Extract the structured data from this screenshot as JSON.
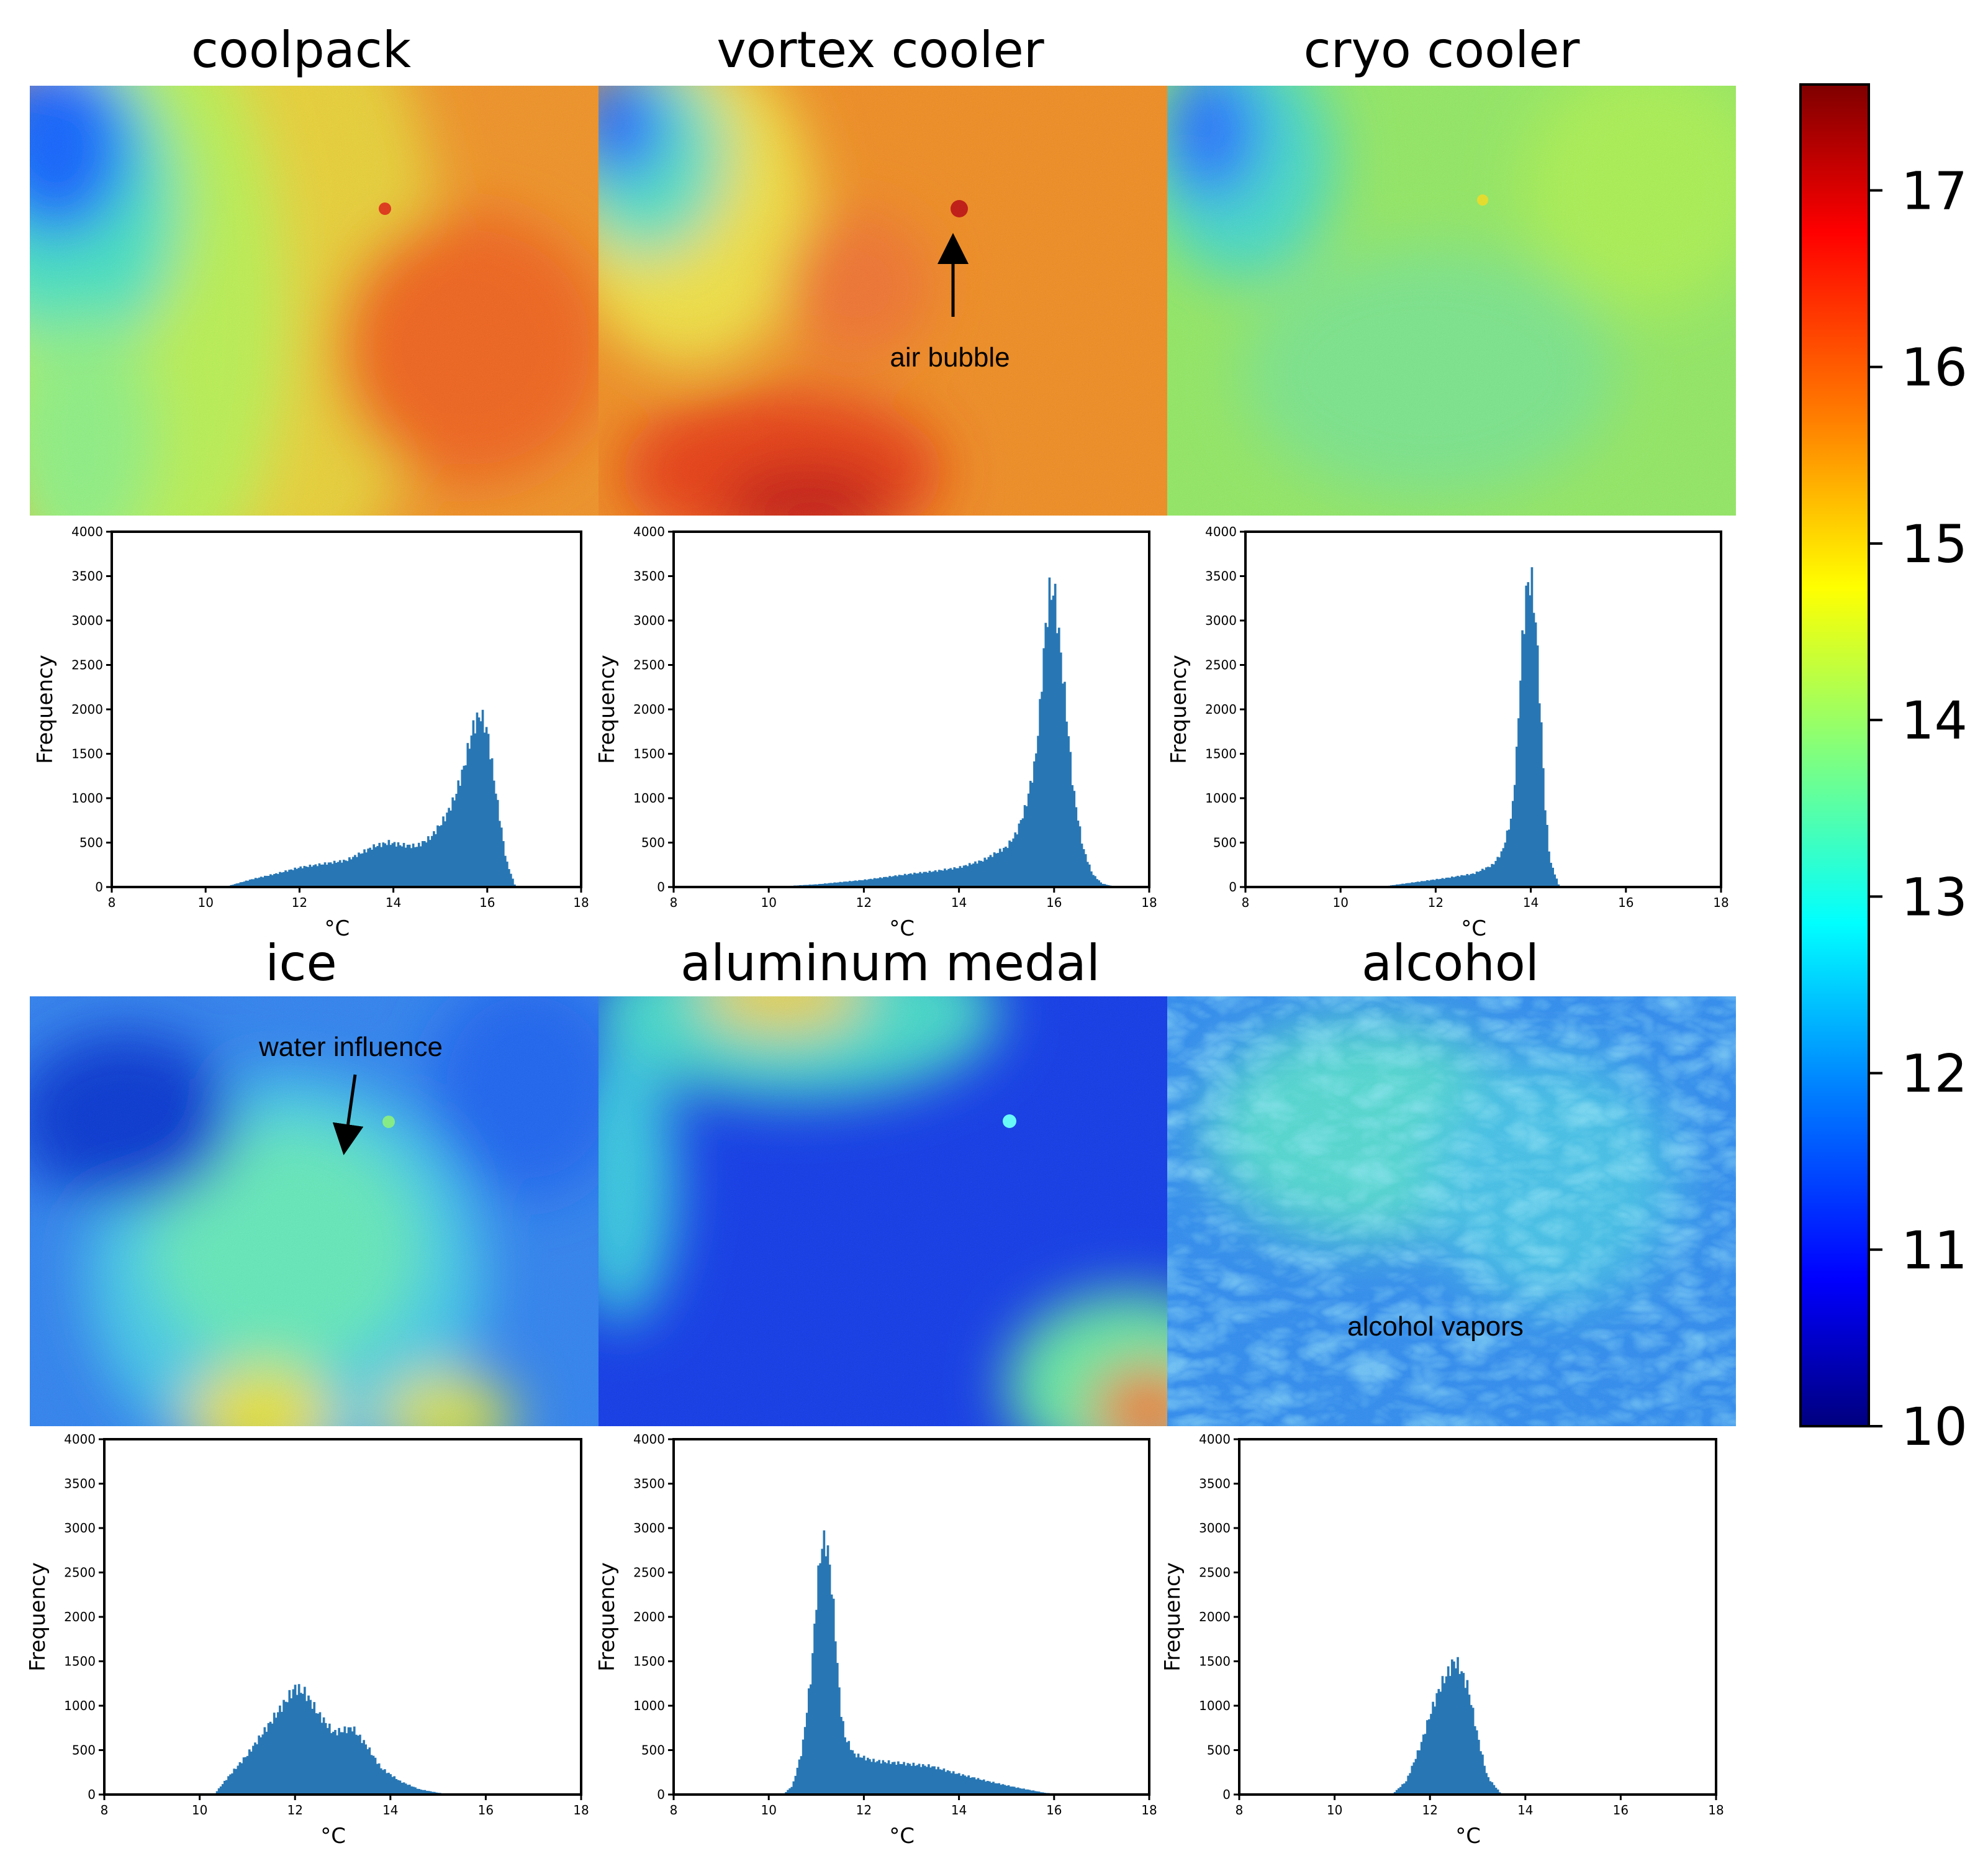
{
  "colormap": {
    "name": "jet",
    "stops": [
      "#00007f",
      "#0000ff",
      "#007fff",
      "#00ffff",
      "#7fff7f",
      "#ffff00",
      "#ff7f00",
      "#ff0000",
      "#7f0000"
    ],
    "range": [
      10,
      17.6
    ],
    "ticks": [
      "10",
      "11",
      "12",
      "13",
      "14",
      "15",
      "16",
      "17"
    ]
  },
  "annotations": {
    "air_bubble": "air bubble",
    "water_influence": "water influence",
    "alcohol_vapors": "alcohol vapors"
  },
  "chart_data": [
    {
      "type": "histogram",
      "name": "coolpack",
      "title": "coolpack",
      "xlabel": "°C",
      "ylabel": "Frequency",
      "xlim": [
        8,
        18
      ],
      "ylim": [
        0,
        4000
      ],
      "xticks": [
        "8",
        "10",
        "12",
        "14",
        "16",
        "18"
      ],
      "yticks": [
        "0",
        "500",
        "1000",
        "1500",
        "2000",
        "2500",
        "3000",
        "3500",
        "4000"
      ],
      "x": [
        10.4,
        11,
        11.5,
        12,
        12.5,
        13,
        13.3,
        13.6,
        13.9,
        14.2,
        14.5,
        14.8,
        15.1,
        15.3,
        15.5,
        15.7,
        15.85,
        16.0,
        16.2,
        16.4,
        16.6
      ],
      "values": [
        0,
        90,
        150,
        220,
        260,
        300,
        380,
        460,
        500,
        470,
        460,
        560,
        780,
        1000,
        1350,
        1800,
        1950,
        1750,
        1000,
        300,
        0
      ]
    },
    {
      "type": "histogram",
      "name": "vortex-cooler",
      "title": "vortex cooler",
      "xlabel": "°C",
      "ylabel": "Frequency",
      "xlim": [
        8,
        18
      ],
      "ylim": [
        0,
        4000
      ],
      "xticks": [
        "8",
        "10",
        "12",
        "14",
        "16",
        "18"
      ],
      "yticks": [
        "0",
        "500",
        "1000",
        "1500",
        "2000",
        "2500",
        "3000",
        "3500",
        "4000"
      ],
      "x": [
        10.0,
        11,
        12,
        13,
        13.5,
        14,
        14.5,
        15,
        15.2,
        15.4,
        15.6,
        15.7,
        15.8,
        15.9,
        16.0,
        16.2,
        16.4,
        16.6,
        16.8,
        17.0,
        17.3
      ],
      "values": [
        0,
        30,
        80,
        150,
        180,
        220,
        300,
        450,
        600,
        900,
        1400,
        2000,
        2800,
        3300,
        3350,
        2300,
        1100,
        450,
        150,
        40,
        0
      ]
    },
    {
      "type": "histogram",
      "name": "cryo-cooler",
      "title": "cryo cooler",
      "xlabel": "°C",
      "ylabel": "Frequency",
      "xlim": [
        8,
        18
      ],
      "ylim": [
        0,
        4000
      ],
      "xticks": [
        "8",
        "10",
        "12",
        "14",
        "16",
        "18"
      ],
      "yticks": [
        "0",
        "500",
        "1000",
        "1500",
        "2000",
        "2500",
        "3000",
        "3500",
        "4000"
      ],
      "x": [
        10.8,
        11.5,
        12.2,
        12.8,
        13.2,
        13.4,
        13.6,
        13.7,
        13.8,
        13.9,
        14.0,
        14.1,
        14.2,
        14.3,
        14.4,
        14.6
      ],
      "values": [
        0,
        50,
        100,
        150,
        250,
        400,
        800,
        1500,
        2600,
        3300,
        3500,
        3000,
        2000,
        900,
        300,
        0
      ]
    },
    {
      "type": "histogram",
      "name": "ice",
      "title": "ice",
      "xlabel": "°C",
      "ylabel": "Frequency",
      "xlim": [
        8,
        18
      ],
      "ylim": [
        0,
        4000
      ],
      "xticks": [
        "8",
        "10",
        "12",
        "14",
        "16",
        "18"
      ],
      "yticks": [
        "0",
        "500",
        "1000",
        "1500",
        "2000",
        "2500",
        "3000",
        "3500",
        "4000"
      ],
      "x": [
        10.3,
        10.6,
        11.0,
        11.4,
        11.8,
        12.0,
        12.2,
        12.5,
        12.8,
        13.0,
        13.2,
        13.5,
        13.8,
        14.2,
        14.6,
        15.0,
        15.3
      ],
      "values": [
        0,
        200,
        450,
        750,
        1050,
        1200,
        1150,
        900,
        700,
        720,
        750,
        550,
        300,
        150,
        60,
        20,
        0
      ]
    },
    {
      "type": "histogram",
      "name": "aluminum-medal",
      "title": "aluminum medal",
      "xlabel": "°C",
      "ylabel": "Frequency",
      "xlim": [
        8,
        18
      ],
      "ylim": [
        0,
        4000
      ],
      "xticks": [
        "8",
        "10",
        "12",
        "14",
        "16",
        "18"
      ],
      "yticks": [
        "0",
        "500",
        "1000",
        "1500",
        "2000",
        "2500",
        "3000",
        "3500",
        "4000"
      ],
      "x": [
        10.3,
        10.5,
        10.7,
        10.9,
        11.0,
        11.1,
        11.2,
        11.3,
        11.4,
        11.5,
        11.6,
        11.8,
        12.2,
        12.8,
        13.4,
        14.0,
        14.6,
        15.2,
        15.8,
        16.2
      ],
      "values": [
        0,
        100,
        500,
        1400,
        2200,
        2800,
        2850,
        2500,
        1800,
        1000,
        650,
        450,
        380,
        350,
        320,
        230,
        150,
        80,
        20,
        0
      ]
    },
    {
      "type": "histogram",
      "name": "alcohol",
      "title": "alcohol",
      "xlabel": "°C",
      "ylabel": "Frequency",
      "xlim": [
        8,
        18
      ],
      "ylim": [
        0,
        4000
      ],
      "xticks": [
        "8",
        "10",
        "12",
        "14",
        "16",
        "18"
      ],
      "yticks": [
        "0",
        "500",
        "1000",
        "1500",
        "2000",
        "2500",
        "3000",
        "3500",
        "4000"
      ],
      "x": [
        11.2,
        11.5,
        11.8,
        12.0,
        12.2,
        12.4,
        12.5,
        12.6,
        12.8,
        13.0,
        13.2,
        13.5
      ],
      "values": [
        0,
        150,
        550,
        900,
        1200,
        1400,
        1500,
        1450,
        1200,
        650,
        200,
        0
      ]
    }
  ]
}
